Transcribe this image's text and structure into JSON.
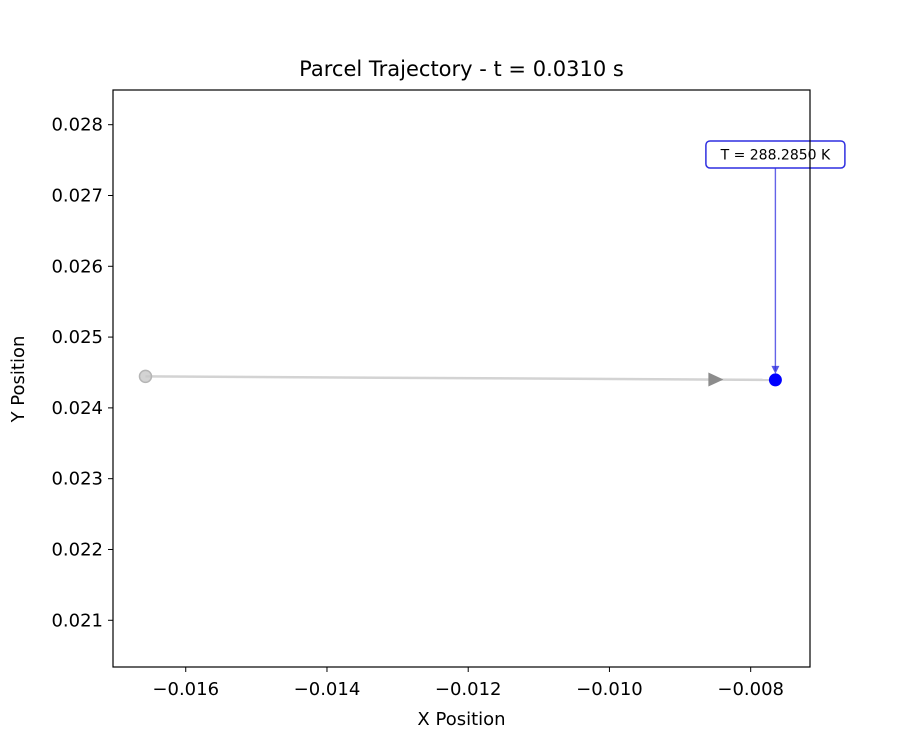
{
  "chart_data": {
    "type": "line",
    "title": "Parcel Trajectory - t = 0.0310 s",
    "xlabel": "X Position",
    "ylabel": "Y Position",
    "xlim": [
      -0.01703,
      -0.00716
    ],
    "ylim": [
      0.02034,
      0.02849
    ],
    "xticks": [
      -0.016,
      -0.014,
      -0.012,
      -0.01,
      -0.008
    ],
    "xtick_labels": [
      "−0.016",
      "−0.014",
      "−0.012",
      "−0.010",
      "−0.008"
    ],
    "yticks": [
      0.021,
      0.022,
      0.023,
      0.024,
      0.025,
      0.026,
      0.027,
      0.028
    ],
    "ytick_labels": [
      "0.021",
      "0.022",
      "0.023",
      "0.024",
      "0.025",
      "0.026",
      "0.027",
      "0.028"
    ],
    "grid": false,
    "series": [
      {
        "x": [
          -0.01657,
          -0.00765
        ],
        "y": [
          0.024445,
          0.024395
        ],
        "color": "#d3d3d3"
      }
    ],
    "start_point": {
      "x": -0.01657,
      "y": 0.024445,
      "color": "#c8c8c8"
    },
    "direction_arrow": {
      "x": -0.0085,
      "y": 0.0244,
      "color": "#8c8c8c"
    },
    "current_point": {
      "x": -0.00765,
      "y": 0.024395,
      "color": "#0000ff"
    },
    "annotation": {
      "text": "T = 288.2850 K",
      "anchor_x": -0.00765,
      "anchor_y": 0.024395,
      "text_x": -0.00765,
      "text_y": 0.02765,
      "color": "#2f2fe0"
    }
  }
}
